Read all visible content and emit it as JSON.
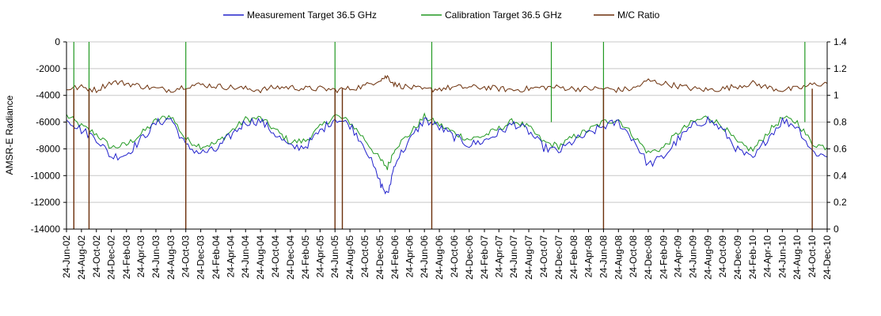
{
  "chart_data": {
    "type": "line",
    "title": "",
    "ylabel": "AMSR-E Radiance",
    "y2label": "",
    "ylim": [
      -14000,
      0
    ],
    "yticks": [
      0,
      -2000,
      -4000,
      -6000,
      -8000,
      -10000,
      -12000,
      -14000
    ],
    "ytick_labels": [
      "0",
      "-2000",
      "-4000",
      "-6000",
      "-8000",
      "-10000",
      "-12000",
      "-14000"
    ],
    "y2lim": [
      0,
      1.4
    ],
    "y2ticks": [
      1.4,
      1.2,
      1,
      0.8,
      0.6,
      0.4,
      0.2,
      0
    ],
    "y2tick_labels": [
      "1.4",
      "1.2",
      "1",
      "0.8",
      "0.6",
      "0.4",
      "0.2",
      "0"
    ],
    "x_dates": [
      "24-Jun-02",
      "24-Aug-02",
      "24-Oct-02",
      "24-Dec-02",
      "24-Feb-03",
      "24-Apr-03",
      "24-Jun-03",
      "24-Aug-03",
      "24-Oct-03",
      "24-Dec-03",
      "24-Feb-04",
      "24-Apr-04",
      "24-Jun-04",
      "24-Aug-04",
      "24-Oct-04",
      "24-Dec-04",
      "24-Feb-05",
      "24-Apr-05",
      "24-Jun-05",
      "24-Aug-05",
      "24-Oct-05",
      "24-Dec-05",
      "24-Feb-06",
      "24-Apr-06",
      "24-Jun-06",
      "24-Aug-06",
      "24-Oct-06",
      "24-Dec-06",
      "24-Feb-07",
      "24-Apr-07",
      "24-Jun-07",
      "24-Aug-07",
      "24-Oct-07",
      "24-Dec-07",
      "24-Feb-08",
      "24-Apr-08",
      "24-Jun-08",
      "24-Aug-08",
      "24-Oct-08",
      "24-Dec-08",
      "24-Feb-09",
      "24-Apr-09",
      "24-Jun-09",
      "24-Aug-09",
      "24-Oct-09",
      "24-Dec-09",
      "24-Feb-10",
      "24-Apr-10",
      "24-Jun-10",
      "24-Aug-10",
      "24-Oct-10",
      "24-Dec-10"
    ],
    "legend_position": "top-center",
    "grid": "horizontal",
    "series": [
      {
        "name": "Measurement Target 36.5 GHz",
        "color": "#2222cc",
        "axis": "left",
        "x": [
          "24-Jun-02",
          "24-Aug-02",
          "24-Oct-02",
          "24-Dec-02",
          "24-Feb-03",
          "24-Apr-03",
          "24-Jun-03",
          "24-Aug-03",
          "24-Oct-03",
          "24-Dec-03",
          "24-Feb-04",
          "24-Apr-04",
          "24-Jun-04",
          "24-Aug-04",
          "24-Oct-04",
          "24-Dec-04",
          "24-Feb-05",
          "24-Apr-05",
          "24-Jun-05",
          "24-Aug-05",
          "24-Oct-05",
          "24-Dec-05",
          "24-Jan-06",
          "24-Feb-06",
          "24-Apr-06",
          "24-Jun-06",
          "24-Aug-06",
          "24-Oct-06",
          "24-Dec-06",
          "24-Feb-07",
          "24-Apr-07",
          "24-Jun-07",
          "24-Aug-07",
          "24-Oct-07",
          "24-Dec-07",
          "24-Feb-08",
          "24-Apr-08",
          "24-Jun-08",
          "24-Aug-08",
          "24-Oct-08",
          "24-Dec-08",
          "24-Feb-09",
          "24-Apr-09",
          "24-Jun-09",
          "24-Aug-09",
          "24-Oct-09",
          "24-Dec-09",
          "24-Feb-10",
          "24-Apr-10",
          "24-Jun-10",
          "24-Aug-10",
          "24-Oct-10",
          "24-Dec-10"
        ],
        "values": [
          -5700,
          -6600,
          -7200,
          -8600,
          -8400,
          -7300,
          -6100,
          -5700,
          -7800,
          -8300,
          -8100,
          -7000,
          -6000,
          -5900,
          -6900,
          -7900,
          -7800,
          -6700,
          -5700,
          -6200,
          -7800,
          -10500,
          -11500,
          -9000,
          -7400,
          -5800,
          -6400,
          -7100,
          -7700,
          -7400,
          -6800,
          -6100,
          -6700,
          -7900,
          -8200,
          -7400,
          -6900,
          -6300,
          -6000,
          -7300,
          -9200,
          -8600,
          -7300,
          -6300,
          -5800,
          -6600,
          -8100,
          -8800,
          -7200,
          -5900,
          -6300,
          -8200,
          -8600
        ]
      },
      {
        "name": "Calibration Target 36.5 GHz",
        "color": "#229922",
        "axis": "left",
        "x": [
          "24-Jun-02",
          "24-Aug-02",
          "24-Oct-02",
          "24-Dec-02",
          "24-Feb-03",
          "24-Apr-03",
          "24-Jun-03",
          "24-Aug-03",
          "24-Oct-03",
          "24-Dec-03",
          "24-Feb-04",
          "24-Apr-04",
          "24-Jun-04",
          "24-Aug-04",
          "24-Oct-04",
          "24-Dec-04",
          "24-Feb-05",
          "24-Apr-05",
          "24-Jun-05",
          "24-Aug-05",
          "24-Oct-05",
          "24-Dec-05",
          "24-Jan-06",
          "24-Feb-06",
          "24-Apr-06",
          "24-Jun-06",
          "24-Aug-06",
          "24-Oct-06",
          "24-Dec-06",
          "24-Feb-07",
          "24-Apr-07",
          "24-Jun-07",
          "24-Aug-07",
          "24-Oct-07",
          "24-Dec-07",
          "24-Feb-08",
          "24-Apr-08",
          "24-Jun-08",
          "24-Aug-08",
          "24-Oct-08",
          "24-Dec-08",
          "24-Feb-09",
          "24-Apr-09",
          "24-Jun-09",
          "24-Aug-09",
          "24-Oct-09",
          "24-Dec-09",
          "24-Feb-10",
          "24-Apr-10",
          "24-Jun-10",
          "24-Aug-10",
          "24-Oct-10",
          "24-Dec-10"
        ],
        "values": [
          -5500,
          -6300,
          -6900,
          -7900,
          -7700,
          -6900,
          -5900,
          -5500,
          -7300,
          -7800,
          -7600,
          -6700,
          -5800,
          -5700,
          -6600,
          -7500,
          -7400,
          -6400,
          -5500,
          -6000,
          -7300,
          -8800,
          -9400,
          -7900,
          -6900,
          -5600,
          -6200,
          -6800,
          -7300,
          -7000,
          -6500,
          -5900,
          -6400,
          -7500,
          -7800,
          -7100,
          -6600,
          -6000,
          -5800,
          -7000,
          -8300,
          -7900,
          -6800,
          -6000,
          -5600,
          -6300,
          -7600,
          -8100,
          -6800,
          -5700,
          -6000,
          -7600,
          -7900
        ]
      },
      {
        "name": "M/C Ratio",
        "color": "#6b2f0a",
        "axis": "right",
        "x": [
          "24-Jun-02",
          "24-Aug-02",
          "24-Oct-02",
          "24-Dec-02",
          "24-Feb-03",
          "24-Apr-03",
          "24-Jun-03",
          "24-Aug-03",
          "24-Oct-03",
          "24-Dec-03",
          "24-Feb-04",
          "24-Apr-04",
          "24-Jun-04",
          "24-Aug-04",
          "24-Oct-04",
          "24-Dec-04",
          "24-Feb-05",
          "24-Apr-05",
          "24-Jun-05",
          "24-Aug-05",
          "24-Oct-05",
          "24-Dec-05",
          "24-Jan-06",
          "24-Feb-06",
          "24-Apr-06",
          "24-Jun-06",
          "24-Aug-06",
          "24-Oct-06",
          "24-Dec-06",
          "24-Feb-07",
          "24-Apr-07",
          "24-Jun-07",
          "24-Aug-07",
          "24-Oct-07",
          "24-Dec-07",
          "24-Feb-08",
          "24-Apr-08",
          "24-Jun-08",
          "24-Aug-08",
          "24-Oct-08",
          "24-Dec-08",
          "24-Feb-09",
          "24-Apr-09",
          "24-Jun-09",
          "24-Aug-09",
          "24-Oct-09",
          "24-Dec-09",
          "24-Feb-10",
          "24-Apr-10",
          "24-Jun-10",
          "24-Aug-10",
          "24-Oct-10",
          "24-Dec-10"
        ],
        "values": [
          1.05,
          1.06,
          1.04,
          1.1,
          1.09,
          1.07,
          1.05,
          1.04,
          1.07,
          1.08,
          1.07,
          1.06,
          1.05,
          1.04,
          1.06,
          1.06,
          1.05,
          1.05,
          1.04,
          1.05,
          1.07,
          1.12,
          1.14,
          1.08,
          1.06,
          1.04,
          1.05,
          1.06,
          1.06,
          1.06,
          1.05,
          1.04,
          1.05,
          1.06,
          1.06,
          1.05,
          1.05,
          1.05,
          1.04,
          1.05,
          1.11,
          1.09,
          1.07,
          1.05,
          1.04,
          1.05,
          1.07,
          1.09,
          1.06,
          1.04,
          1.05,
          1.08,
          1.09
        ]
      }
    ],
    "dropouts": [
      {
        "date": "24-Jul-02",
        "series": "M/C Ratio",
        "value": 0
      },
      {
        "date": "24-Sep-02",
        "series": "M/C Ratio",
        "value": 0
      },
      {
        "date": "24-Oct-03",
        "series": "M/C Ratio",
        "value": 0
      },
      {
        "date": "24-Jun-05",
        "series": "M/C Ratio",
        "value": 0
      },
      {
        "date": "24-Jul-05",
        "series": "M/C Ratio",
        "value": 0
      },
      {
        "date": "24-Jul-06",
        "series": "M/C Ratio",
        "value": 0
      },
      {
        "date": "24-Jun-08",
        "series": "M/C Ratio",
        "value": 0
      },
      {
        "date": "24-Oct-10",
        "series": "M/C Ratio",
        "value": 0
      }
    ],
    "spikes": [
      {
        "date": "24-Jul-02",
        "series": "Calibration Target 36.5 GHz",
        "value": 0
      },
      {
        "date": "24-Sep-02",
        "series": "Calibration Target 36.5 GHz",
        "value": 0
      },
      {
        "date": "24-Oct-03",
        "series": "Calibration Target 36.5 GHz",
        "value": 0
      },
      {
        "date": "24-Jun-05",
        "series": "Calibration Target 36.5 GHz",
        "value": 0
      },
      {
        "date": "24-Jul-06",
        "series": "Calibration Target 36.5 GHz",
        "value": 0
      },
      {
        "date": "24-Nov-07",
        "series": "Calibration Target 36.5 GHz",
        "value": 0
      },
      {
        "date": "24-Jun-08",
        "series": "Calibration Target 36.5 GHz",
        "value": 0
      },
      {
        "date": "24-Sep-10",
        "series": "Calibration Target 36.5 GHz",
        "value": 0
      }
    ]
  }
}
